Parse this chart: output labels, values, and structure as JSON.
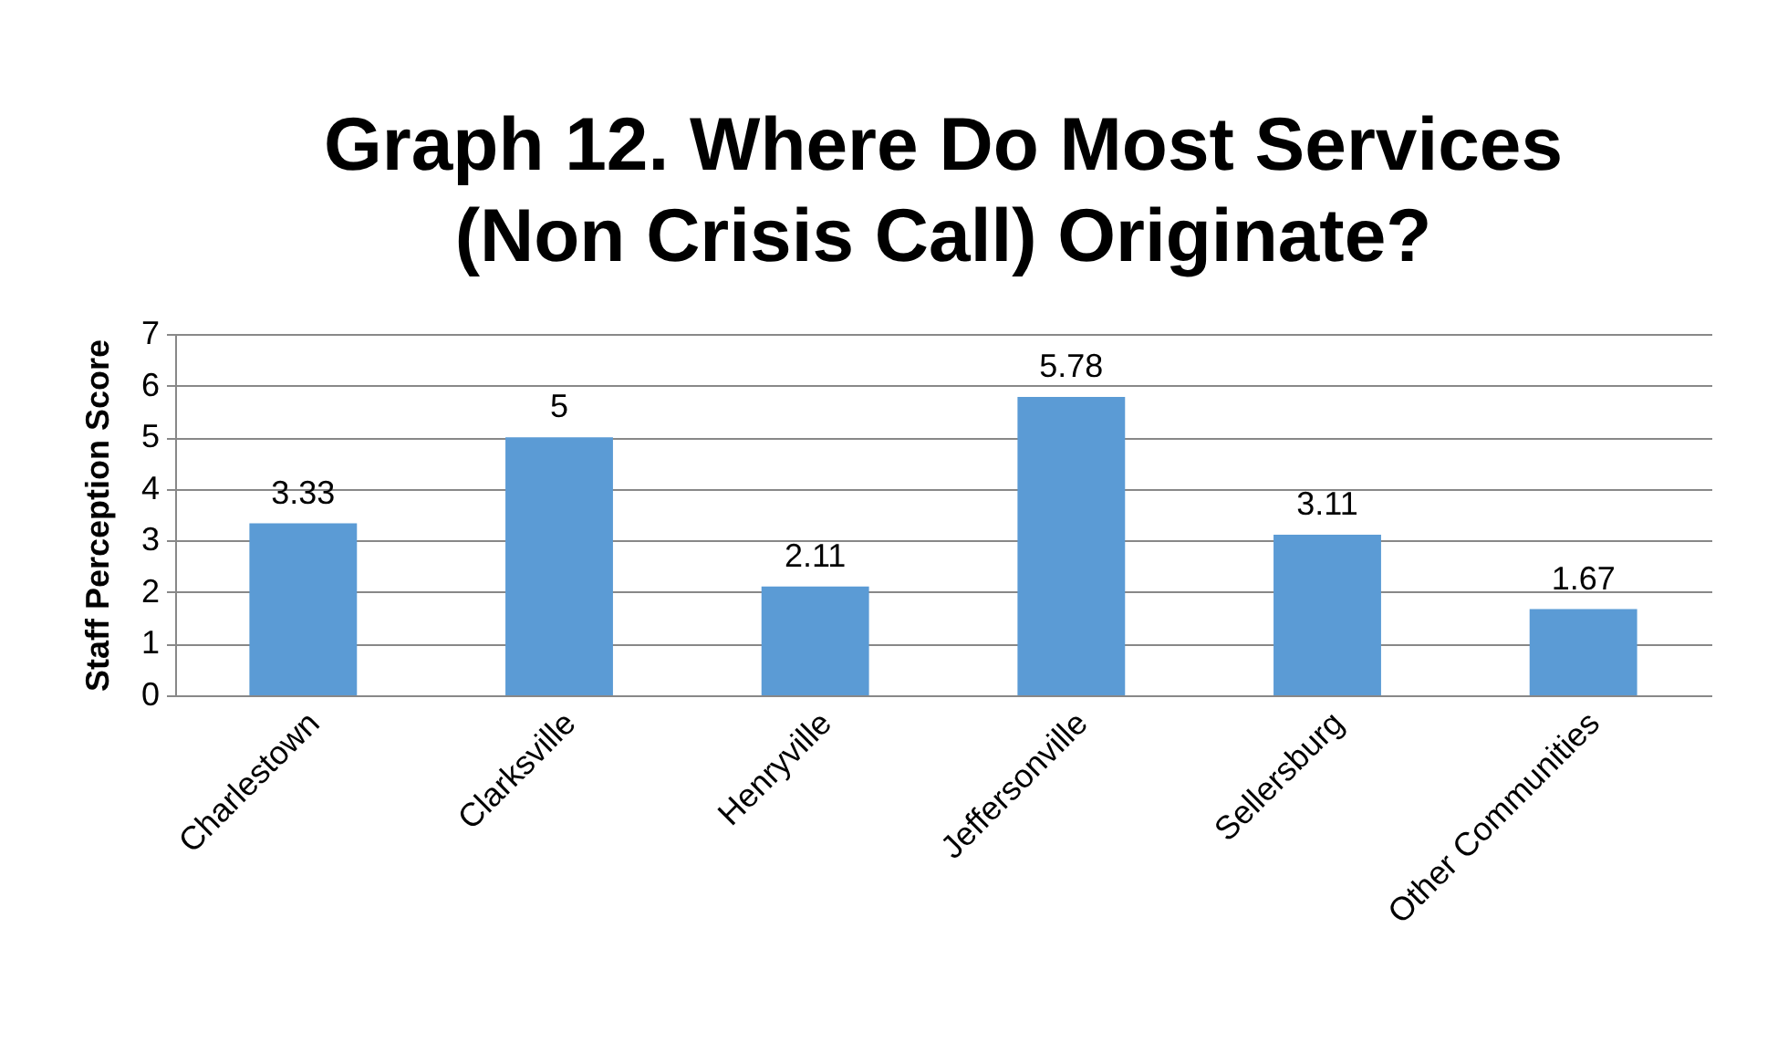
{
  "chart_data": {
    "type": "bar",
    "title": "Graph 12.  Where Do Most Services (Non Crisis Call) Originate?",
    "ylabel": "Staff Perception Score",
    "categories": [
      "Charlestown",
      "Clarksville",
      "Henryville",
      "Jeffersonville",
      "Sellersburg",
      "Other Communities"
    ],
    "values": [
      3.33,
      5,
      2.11,
      5.78,
      3.11,
      1.67
    ],
    "color": "#5b9bd5",
    "ylim": [
      0,
      7
    ],
    "yticks": [
      0,
      1,
      2,
      3,
      4,
      5,
      6,
      7
    ],
    "grid": "y",
    "data_labels": true
  }
}
